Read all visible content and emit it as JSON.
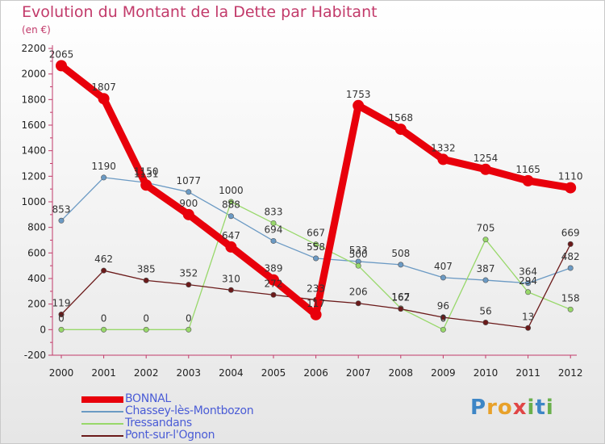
{
  "chart_data": {
    "type": "line",
    "title": "Evolution du Montant de la Dette par Habitant",
    "subtitle": "(en €)",
    "categories": [
      "2000",
      "2001",
      "2002",
      "2003",
      "2004",
      "2005",
      "2006",
      "2007",
      "2008",
      "2009",
      "2010",
      "2011",
      "2012"
    ],
    "ylim": [
      -200,
      2200
    ],
    "yticks": [
      "-200",
      "0",
      "200",
      "400",
      "600",
      "800",
      "1000",
      "1200",
      "1400",
      "1600",
      "1800",
      "2000",
      "2200"
    ],
    "grid": false,
    "legend_position": "bottom-left",
    "series": [
      {
        "name": "BONNAL",
        "color": "#e8000b",
        "values": [
          2065,
          1807,
          1131,
          900,
          647,
          389,
          117,
          1753,
          1568,
          1332,
          1254,
          1165,
          1110
        ],
        "labels": [
          "2065",
          "1807",
          "1131",
          "900",
          "647",
          "389",
          "117",
          "1753",
          "1568",
          "1332",
          "1254",
          "1165",
          "1110"
        ]
      },
      {
        "name": "Chassey-lès-Montbozon",
        "color": "#6b9ac4",
        "values": [
          853,
          1190,
          1150,
          1077,
          888,
          694,
          558,
          533,
          508,
          407,
          387,
          364,
          482
        ],
        "labels": [
          "853",
          "1190",
          "1150",
          "1077",
          "888",
          "694",
          "558",
          "533",
          "508",
          "407",
          "387",
          "364",
          "482"
        ]
      },
      {
        "name": "Tressandans",
        "color": "#98d86a",
        "values": [
          0,
          0,
          0,
          0,
          1000,
          833,
          667,
          500,
          167,
          0,
          705,
          294,
          158
        ],
        "labels": [
          "0",
          "0",
          "0",
          "0",
          "1000",
          "833",
          "667",
          "500",
          "167",
          "0",
          "705",
          "294",
          "158"
        ]
      },
      {
        "name": "Pont-sur-l'Ognon",
        "color": "#6b1a1a",
        "values": [
          119,
          462,
          385,
          352,
          310,
          272,
          233,
          206,
          162,
          96,
          56,
          13,
          669
        ],
        "labels": [
          "119",
          "462",
          "385",
          "352",
          "310",
          "272",
          "233",
          "206",
          "162",
          "96",
          "56",
          "13",
          "669"
        ]
      }
    ]
  },
  "logo": {
    "letters": [
      "P",
      "r",
      "o",
      "x",
      "i",
      "t",
      "i"
    ],
    "colors": [
      "#3d86c6",
      "#e8a12a",
      "#e8a12a",
      "#e04545",
      "#6ab04c",
      "#3d86c6",
      "#6ab04c"
    ]
  }
}
